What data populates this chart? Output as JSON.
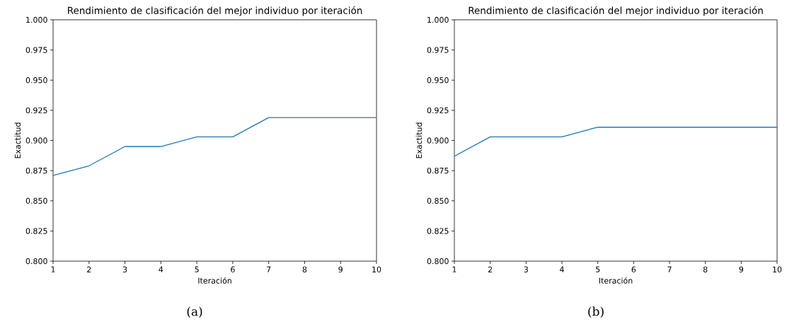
{
  "chart_data": [
    {
      "type": "line",
      "title": "Rendimiento de clasificación del mejor individuo por iteración",
      "xlabel": "Iteración",
      "ylabel": "Exactitud",
      "annotations": [
        "(a)"
      ],
      "x": [
        1,
        2,
        3,
        4,
        5,
        6,
        7,
        8,
        9,
        10
      ],
      "series": [
        {
          "color": "#1f77b4",
          "values": [
            0.871,
            0.879,
            0.895,
            0.895,
            0.903,
            0.903,
            0.919,
            0.919,
            0.919,
            0.919
          ]
        }
      ],
      "xlim": [
        1,
        10
      ],
      "xticks": [
        1,
        2,
        3,
        4,
        5,
        6,
        7,
        8,
        9,
        10
      ],
      "ylim": [
        0.8,
        1.0
      ],
      "yticks": [
        {
          "value": 0.8,
          "label": "0.800"
        },
        {
          "value": 0.825,
          "label": "0.825"
        },
        {
          "value": 0.85,
          "label": "0.850"
        },
        {
          "value": 0.875,
          "label": "0.875"
        },
        {
          "value": 0.9,
          "label": "0.900"
        },
        {
          "value": 0.925,
          "label": "0.925"
        },
        {
          "value": 0.95,
          "label": "0.950"
        },
        {
          "value": 0.975,
          "label": "0.975"
        },
        {
          "value": 1.0,
          "label": "1.000"
        }
      ]
    },
    {
      "type": "line",
      "title": "Rendimiento de clasificación del mejor individuo por iteración",
      "xlabel": "Iteración",
      "ylabel": "Exactitud",
      "annotations": [
        "(b)"
      ],
      "x": [
        1,
        2,
        3,
        4,
        5,
        6,
        7,
        8,
        9,
        10
      ],
      "series": [
        {
          "color": "#1f77b4",
          "values": [
            0.887,
            0.903,
            0.903,
            0.903,
            0.911,
            0.911,
            0.911,
            0.911,
            0.911,
            0.911
          ]
        }
      ],
      "xlim": [
        1,
        10
      ],
      "xticks": [
        1,
        2,
        3,
        4,
        5,
        6,
        7,
        8,
        9,
        10
      ],
      "ylim": [
        0.8,
        1.0
      ],
      "yticks": [
        {
          "value": 0.8,
          "label": "0.800"
        },
        {
          "value": 0.825,
          "label": "0.825"
        },
        {
          "value": 0.85,
          "label": "0.850"
        },
        {
          "value": 0.875,
          "label": "0.875"
        },
        {
          "value": 0.9,
          "label": "0.900"
        },
        {
          "value": 0.925,
          "label": "0.925"
        },
        {
          "value": 0.95,
          "label": "0.950"
        },
        {
          "value": 0.975,
          "label": "0.975"
        },
        {
          "value": 1.0,
          "label": "1.000"
        }
      ]
    }
  ]
}
